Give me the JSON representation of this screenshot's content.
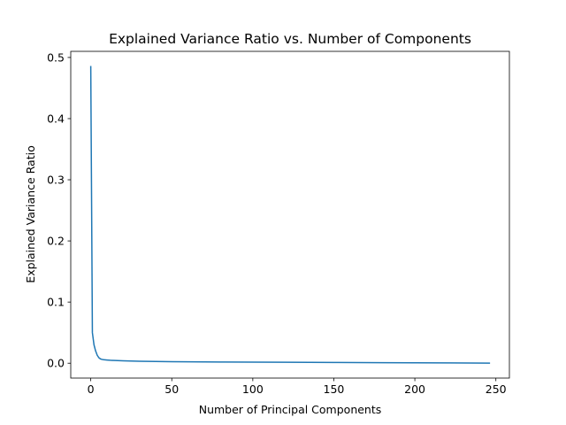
{
  "chart_data": {
    "type": "line",
    "title": "Explained Variance Ratio vs. Number of Components",
    "xlabel": "Number of Principal Components",
    "ylabel": "Explained Variance Ratio",
    "xlim": [
      -12.35,
      258.35
    ],
    "ylim": [
      -0.0243,
      0.51
    ],
    "xticks": [
      0,
      50,
      100,
      150,
      200,
      250
    ],
    "xtick_labels": [
      "0",
      "50",
      "100",
      "150",
      "200",
      "250"
    ],
    "yticks": [
      0.0,
      0.1,
      0.2,
      0.3,
      0.4,
      0.5
    ],
    "ytick_labels": [
      "0.0",
      "0.1",
      "0.2",
      "0.3",
      "0.4",
      "0.5"
    ],
    "grid": false,
    "series": [
      {
        "color": "#1f77b4",
        "x": [
          0,
          1,
          2,
          3,
          4,
          5,
          6,
          7,
          8,
          10,
          12,
          15,
          20,
          25,
          30,
          40,
          50,
          60,
          80,
          100,
          120,
          150,
          180,
          200,
          220,
          246
        ],
        "y": [
          0.485,
          0.05,
          0.03,
          0.02,
          0.013,
          0.009,
          0.007,
          0.0062,
          0.0057,
          0.0052,
          0.0048,
          0.0044,
          0.0039,
          0.0035,
          0.0032,
          0.0028,
          0.0025,
          0.0023,
          0.002,
          0.0017,
          0.0015,
          0.0012,
          0.0009,
          0.0007,
          0.0005,
          0.0002
        ]
      }
    ]
  }
}
